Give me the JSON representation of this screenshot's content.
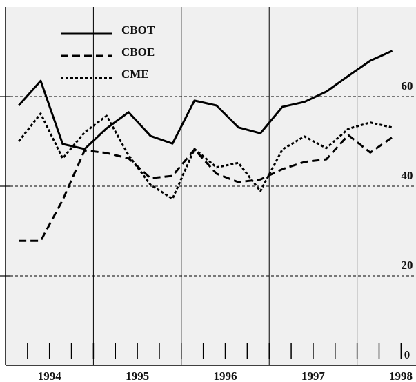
{
  "chart_data": {
    "type": "line",
    "x": [
      1994.15,
      1994.4,
      1994.65,
      1994.9,
      1995.15,
      1995.4,
      1995.65,
      1995.9,
      1996.15,
      1996.4,
      1996.65,
      1996.9,
      1997.15,
      1997.4,
      1997.65,
      1997.9,
      1998.15,
      1998.4
    ],
    "series": [
      {
        "name": "CBOT",
        "color": "#000000",
        "dash": "solid",
        "values": [
          58.0,
          63.5,
          49.4,
          48.3,
          52.9,
          56.5,
          51.2,
          49.5,
          59.1,
          58.0,
          53.1,
          51.8,
          57.7,
          58.8,
          61.1,
          64.6,
          68.0,
          70.2
        ]
      },
      {
        "name": "CBOE",
        "color": "#000000",
        "dash": "dashed",
        "values": [
          27.8,
          27.8,
          36.9,
          48.0,
          47.4,
          46.2,
          41.8,
          42.3,
          48.2,
          42.8,
          40.9,
          41.5,
          43.8,
          45.4,
          46.0,
          51.4,
          47.5,
          50.9
        ]
      },
      {
        "name": "CME",
        "color": "#000000",
        "dash": "dotted",
        "values": [
          50.0,
          56.2,
          46.2,
          52.0,
          55.7,
          46.9,
          40.3,
          37.2,
          48.3,
          44.2,
          45.2,
          38.9,
          48.2,
          51.1,
          48.5,
          52.8,
          54.2,
          53.1
        ]
      }
    ],
    "xlim": [
      1994,
      1998.67
    ],
    "xticks": [
      {
        "value": 1994.5,
        "label": "1994"
      },
      {
        "value": 1995.5,
        "label": "1995"
      },
      {
        "value": 1996.5,
        "label": "1996"
      },
      {
        "value": 1997.5,
        "label": "1997"
      },
      {
        "value": 1998.5,
        "label": "1998"
      }
    ],
    "ylim": [
      0,
      80
    ],
    "yticks": [
      0,
      20,
      40,
      60
    ],
    "grid": true,
    "legend": "upper left"
  }
}
